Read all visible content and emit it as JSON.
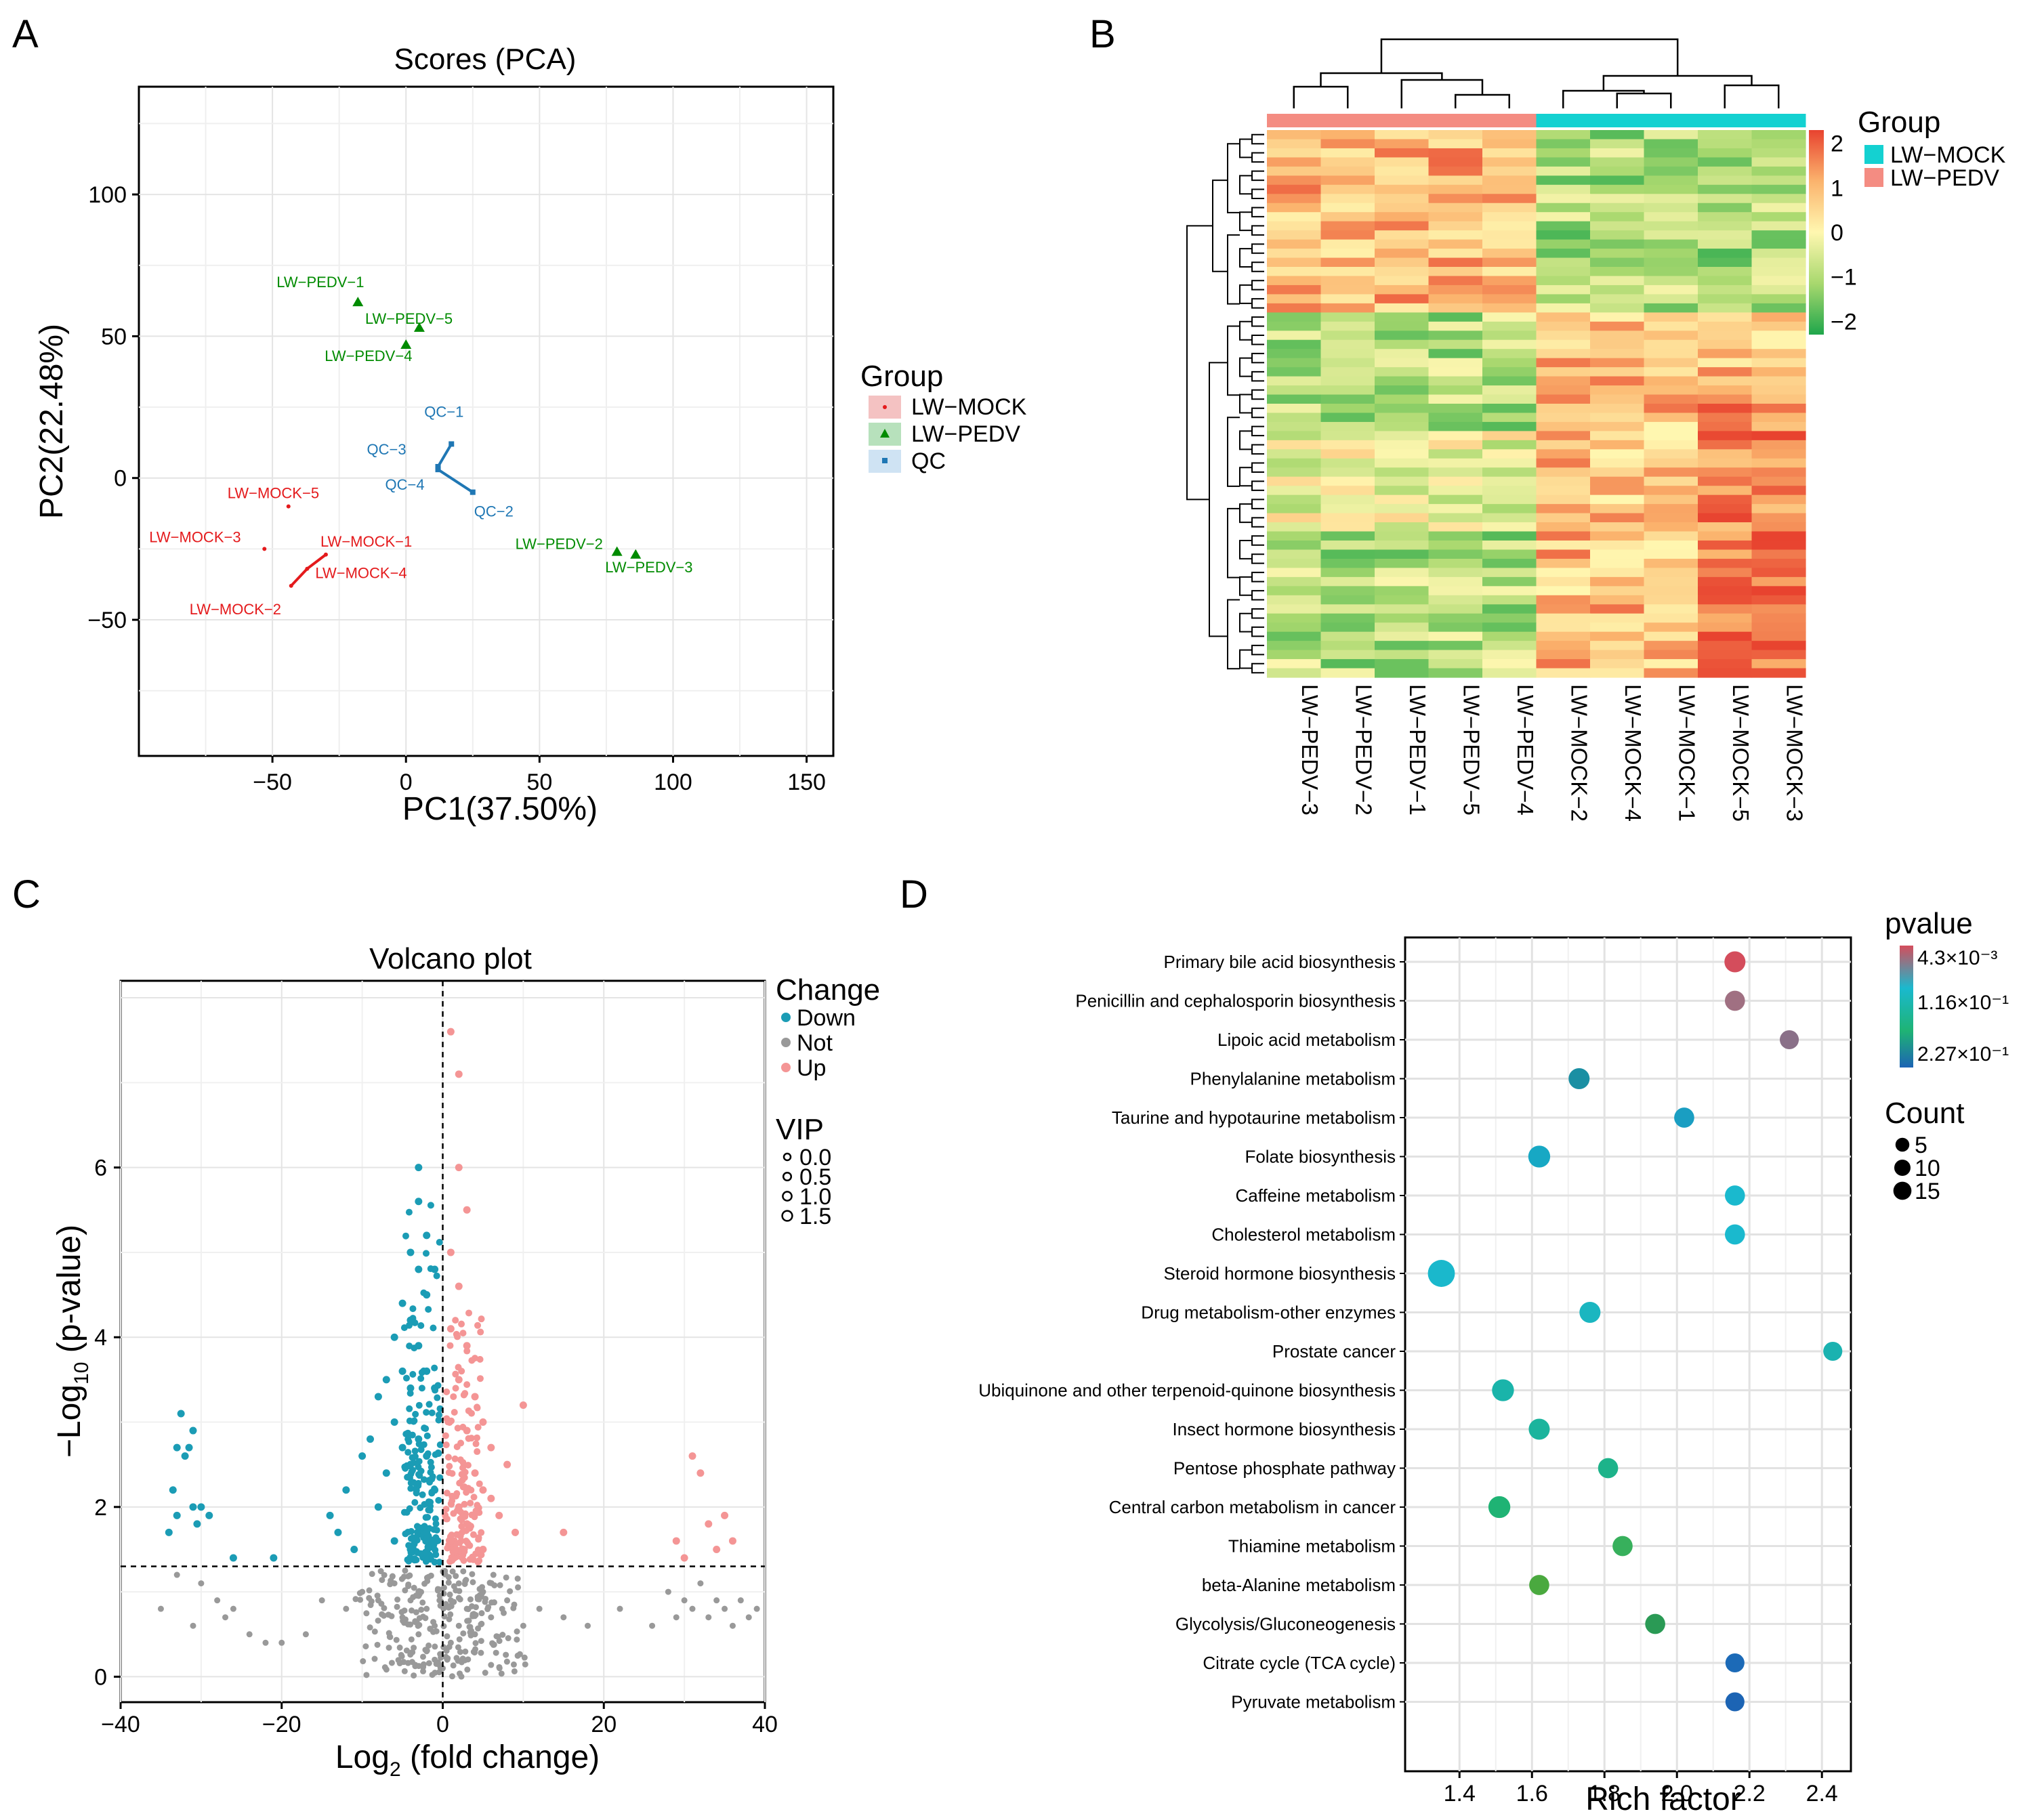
{
  "panels": {
    "A": {
      "letter": "A",
      "chart_data": {
        "type": "scatter",
        "title": "Scores (PCA)",
        "xlabel": "PC1(37.50%)",
        "ylabel": "PC2(22.48%)",
        "xlim": [
          -100,
          160
        ],
        "ylim": [
          -98,
          138
        ],
        "xticks": [
          -50,
          0,
          50,
          100,
          150
        ],
        "yticks": [
          -50,
          0,
          50,
          100
        ],
        "legend": {
          "title": "Group",
          "position": "right",
          "entries": [
            {
              "label": "LW−MOCK",
              "color": "#e41a1c",
              "fill": "#f4c2c2"
            },
            {
              "label": "LW−PEDV",
              "color": "#008b00",
              "fill": "#b7e1bc"
            },
            {
              "label": "QC",
              "color": "#1f77b4",
              "fill": "#cfe3f3"
            }
          ]
        },
        "points": [
          {
            "label": "LW−PEDV−1",
            "group": "LW−PEDV",
            "x": -18,
            "y": 62
          },
          {
            "label": "LW−PEDV−5",
            "group": "LW−PEDV",
            "x": 5,
            "y": 53
          },
          {
            "label": "LW−PEDV−4",
            "group": "LW−PEDV",
            "x": 0,
            "y": 47
          },
          {
            "label": "LW−PEDV−2",
            "group": "LW−PEDV",
            "x": 79,
            "y": -26
          },
          {
            "label": "LW−PEDV−3",
            "group": "LW−PEDV",
            "x": 86,
            "y": -27
          },
          {
            "label": "QC−1",
            "group": "QC",
            "x": 17,
            "y": 12
          },
          {
            "label": "QC−3",
            "group": "QC",
            "x": 12,
            "y": 4
          },
          {
            "label": "QC−4",
            "group": "QC",
            "x": 12,
            "y": 3
          },
          {
            "label": "QC−2",
            "group": "QC",
            "x": 25,
            "y": -5
          },
          {
            "label": "LW−MOCK−5",
            "group": "LW−MOCK",
            "x": -44,
            "y": -10
          },
          {
            "label": "LW−MOCK−3",
            "group": "LW−MOCK",
            "x": -53,
            "y": -25
          },
          {
            "label": "LW−MOCK−1",
            "group": "LW−MOCK",
            "x": -30,
            "y": -27
          },
          {
            "label": "LW−MOCK−4",
            "group": "LW−MOCK",
            "x": -37,
            "y": -32
          },
          {
            "label": "LW−MOCK−2",
            "group": "LW−MOCK",
            "x": -43,
            "y": -38
          }
        ]
      }
    },
    "B": {
      "letter": "B",
      "chart_data": {
        "type": "heatmap",
        "columns": [
          "LW−PEDV−3",
          "LW−PEDV−2",
          "LW−PEDV−1",
          "LW−PEDV−5",
          "LW−PEDV−4",
          "LW−MOCK−2",
          "LW−MOCK−4",
          "LW−MOCK−1",
          "LW−MOCK−5",
          "LW−MOCK−3"
        ],
        "column_groups": [
          "LW−PEDV",
          "LW−PEDV",
          "LW−PEDV",
          "LW−PEDV",
          "LW−PEDV",
          "LW−MOCK",
          "LW−MOCK",
          "LW−MOCK",
          "LW−MOCK",
          "LW−MOCK"
        ],
        "colorbar": {
          "ticks": [
            2,
            1,
            0,
            -1,
            -2
          ],
          "tick_labels": [
            "2",
            "1",
            "0",
            "−1",
            "−2"
          ],
          "colors": [
            "#e8432f",
            "#fbb36d",
            "#fff7b0",
            "#a8d86e",
            "#1fa64b"
          ]
        },
        "legend": {
          "title": "Group",
          "position": "top-right",
          "entries": [
            {
              "label": "LW−MOCK",
              "color": "#14d1d1"
            },
            {
              "label": "LW−PEDV",
              "color": "#f48c82"
            }
          ]
        }
      }
    },
    "C": {
      "letter": "C",
      "chart_data": {
        "type": "scatter",
        "title": "Volcano plot",
        "xlabel_main": "Log",
        "xlabel_sub": "2",
        "xlabel_rest": " (fold change)",
        "ylabel_main": "−Log",
        "ylabel_sub": "10",
        "ylabel_rest": " (p-value)",
        "xlim": [
          -40,
          40
        ],
        "ylim": [
          -0.3,
          8.2
        ],
        "xticks": [
          -40,
          -20,
          0,
          20,
          40
        ],
        "yticks": [
          0,
          2,
          4,
          6
        ],
        "thresholds": {
          "x": 0,
          "y": 1.3
        },
        "change_legend": {
          "title": "Change",
          "entries": [
            {
              "label": "Down",
              "color": "#1b9cb5"
            },
            {
              "label": "Not",
              "color": "#999999"
            },
            {
              "label": "Up",
              "color": "#f49595"
            }
          ]
        },
        "vip_legend": {
          "title": "VIP",
          "labels": [
            "0.0",
            "0.5",
            "1.0",
            "1.5"
          ]
        },
        "down_points": [
          [
            -34,
            1.7
          ],
          [
            -33.5,
            2.2
          ],
          [
            -33,
            2.7
          ],
          [
            -32.5,
            3.1
          ],
          [
            -32,
            2.6
          ],
          [
            -31.5,
            2.7
          ],
          [
            -31,
            2.9
          ],
          [
            -30.5,
            1.8
          ],
          [
            -30,
            2.0
          ],
          [
            -29,
            1.9
          ],
          [
            -33,
            1.9
          ],
          [
            -31,
            2.0
          ],
          [
            -26,
            1.4
          ],
          [
            -21,
            1.4
          ],
          [
            -14,
            1.9
          ],
          [
            -13,
            1.7
          ],
          [
            -12,
            2.2
          ],
          [
            -11,
            1.5
          ],
          [
            -10,
            2.6
          ],
          [
            -9,
            2.8
          ],
          [
            -8,
            3.3
          ],
          [
            -8,
            2.0
          ],
          [
            -7,
            3.5
          ],
          [
            -7,
            2.4
          ],
          [
            -6,
            4.0
          ],
          [
            -6,
            3.0
          ],
          [
            -5,
            4.4
          ],
          [
            -5,
            3.6
          ],
          [
            -5,
            2.7
          ],
          [
            -4,
            5.0
          ],
          [
            -4,
            4.2
          ],
          [
            -4,
            3.4
          ],
          [
            -4,
            2.5
          ],
          [
            -3,
            6.0
          ],
          [
            -3,
            5.6
          ],
          [
            -3,
            4.8
          ],
          [
            -3,
            3.9
          ],
          [
            -3,
            2.8
          ],
          [
            -2,
            5.2
          ],
          [
            -2,
            4.5
          ],
          [
            -2,
            3.6
          ],
          [
            -2,
            2.6
          ],
          [
            -1,
            4.8
          ],
          [
            -1,
            3.4
          ],
          [
            -1,
            2.2
          ],
          [
            -6,
            1.6
          ],
          [
            -4,
            1.5
          ],
          [
            -2,
            1.7
          ]
        ],
        "up_points": [
          [
            1,
            7.6
          ],
          [
            2,
            7.1
          ],
          [
            2,
            6.0
          ],
          [
            3,
            5.5
          ],
          [
            1,
            5.0
          ],
          [
            2,
            4.6
          ],
          [
            1,
            4.1
          ],
          [
            3,
            3.9
          ],
          [
            2,
            3.5
          ],
          [
            4,
            3.3
          ],
          [
            5,
            3.0
          ],
          [
            6,
            2.7
          ],
          [
            3,
            2.9
          ],
          [
            4,
            2.4
          ],
          [
            5,
            2.2
          ],
          [
            6,
            2.1
          ],
          [
            8,
            2.5
          ],
          [
            10,
            3.2
          ],
          [
            9,
            1.7
          ],
          [
            7,
            1.9
          ],
          [
            2,
            2.0
          ],
          [
            1,
            1.6
          ],
          [
            3,
            1.8
          ],
          [
            5,
            1.5
          ],
          [
            15,
            1.7
          ],
          [
            29,
            1.6
          ],
          [
            31,
            2.6
          ],
          [
            32,
            2.4
          ],
          [
            33,
            1.8
          ],
          [
            34,
            1.5
          ],
          [
            35,
            1.9
          ],
          [
            36,
            1.6
          ],
          [
            30,
            1.4
          ]
        ],
        "not_points": [
          [
            -35,
            0.8
          ],
          [
            -33,
            1.2
          ],
          [
            -31,
            0.6
          ],
          [
            -30,
            1.1
          ],
          [
            -28,
            0.9
          ],
          [
            -27,
            0.7
          ],
          [
            -26,
            0.8
          ],
          [
            -24,
            0.5
          ],
          [
            -22,
            0.4
          ],
          [
            -20,
            0.4
          ],
          [
            -17,
            0.5
          ],
          [
            -15,
            0.9
          ],
          [
            -12,
            0.8
          ],
          [
            -10,
            1.0
          ],
          [
            -8,
            0.9
          ],
          [
            -6,
            1.1
          ],
          [
            -5,
            0.7
          ],
          [
            -4,
            0.9
          ],
          [
            -3,
            1.0
          ],
          [
            -3,
            0.5
          ],
          [
            -2,
            0.8
          ],
          [
            -2,
            0.3
          ],
          [
            -1,
            0.6
          ],
          [
            -1,
            0.2
          ],
          [
            0,
            0.1
          ],
          [
            1,
            0.4
          ],
          [
            1,
            0.9
          ],
          [
            2,
            0.6
          ],
          [
            2,
            1.1
          ],
          [
            3,
            0.8
          ],
          [
            4,
            0.5
          ],
          [
            5,
            1.0
          ],
          [
            6,
            0.7
          ],
          [
            8,
            0.9
          ],
          [
            10,
            0.6
          ],
          [
            12,
            0.8
          ],
          [
            15,
            0.7
          ],
          [
            18,
            0.6
          ],
          [
            22,
            0.8
          ],
          [
            26,
            0.6
          ],
          [
            28,
            1.0
          ],
          [
            29,
            0.7
          ],
          [
            30,
            0.9
          ],
          [
            31,
            0.8
          ],
          [
            32,
            1.1
          ],
          [
            33,
            0.7
          ],
          [
            34,
            0.9
          ],
          [
            35,
            0.8
          ],
          [
            36,
            0.6
          ],
          [
            37,
            0.9
          ],
          [
            38,
            0.7
          ],
          [
            39,
            0.8
          ]
        ]
      }
    },
    "D": {
      "letter": "D",
      "chart_data": {
        "type": "scatter",
        "xlabel": "Rich factor",
        "xlim": [
          1.25,
          2.48
        ],
        "xticks": [
          1.4,
          1.6,
          1.8,
          2.0,
          2.2,
          2.4
        ],
        "xtick_labels": [
          "1.4",
          "1.6",
          "1.8",
          "2.0",
          "2.2",
          "2.4"
        ],
        "pvalue_legend": {
          "title": "pvalue",
          "labels": [
            "4.3×10⁻³",
            "1.16×10⁻¹",
            "2.27×10⁻¹"
          ]
        },
        "count_legend": {
          "title": "Count",
          "labels": [
            "5",
            "10",
            "15"
          ],
          "values": [
            5,
            10,
            15
          ]
        },
        "pathways": [
          {
            "name": "Primary bile acid biosynthesis",
            "rich_factor": 2.16,
            "count": 7,
            "color": "#d44d5c"
          },
          {
            "name": "Penicillin and cephalosporin biosynthesis",
            "rich_factor": 2.16,
            "count": 6,
            "color": "#a07082"
          },
          {
            "name": "Lipoic acid metabolism",
            "rich_factor": 2.31,
            "count": 5,
            "color": "#8a7088"
          },
          {
            "name": "Phenylalanine metabolism",
            "rich_factor": 1.73,
            "count": 7,
            "color": "#1a8fa3"
          },
          {
            "name": "Taurine and hypotaurine metabolism",
            "rich_factor": 2.02,
            "count": 6,
            "color": "#1a9ec2"
          },
          {
            "name": "Folate biosynthesis",
            "rich_factor": 1.62,
            "count": 8,
            "color": "#17a8c4"
          },
          {
            "name": "Caffeine metabolism",
            "rich_factor": 2.16,
            "count": 6,
            "color": "#1ab9ce"
          },
          {
            "name": "Cholesterol metabolism",
            "rich_factor": 2.16,
            "count": 6,
            "color": "#1ab9ce"
          },
          {
            "name": "Steroid hormone biosynthesis",
            "rich_factor": 1.35,
            "count": 15,
            "color": "#1ab8cc"
          },
          {
            "name": "Drug metabolism-other enzymes",
            "rich_factor": 1.76,
            "count": 7,
            "color": "#1ab6c0"
          },
          {
            "name": "Prostate cancer",
            "rich_factor": 2.43,
            "count": 5,
            "color": "#1ab2b0"
          },
          {
            "name": "Ubiquinone and other terpenoid-quinone biosynthesis",
            "rich_factor": 1.52,
            "count": 8,
            "color": "#1ab4aa"
          },
          {
            "name": "Insect hormone biosynthesis",
            "rich_factor": 1.62,
            "count": 7,
            "color": "#1bb49d"
          },
          {
            "name": "Pentose phosphate pathway",
            "rich_factor": 1.81,
            "count": 6,
            "color": "#1db38a"
          },
          {
            "name": "Central carbon metabolism in cancer",
            "rich_factor": 1.51,
            "count": 8,
            "color": "#1fb374"
          },
          {
            "name": "Thiamine metabolism",
            "rich_factor": 1.85,
            "count": 6,
            "color": "#37b05c"
          },
          {
            "name": "beta-Alanine metabolism",
            "rich_factor": 1.62,
            "count": 6,
            "color": "#4aa93f"
          },
          {
            "name": "Glycolysis/Gluconeogenesis",
            "rich_factor": 1.94,
            "count": 6,
            "color": "#2a9a55"
          },
          {
            "name": "Citrate cycle (TCA cycle)",
            "rich_factor": 2.16,
            "count": 5,
            "color": "#1c6ab7"
          },
          {
            "name": "Pyruvate metabolism",
            "rich_factor": 2.16,
            "count": 5,
            "color": "#1c64b4"
          }
        ]
      }
    }
  }
}
